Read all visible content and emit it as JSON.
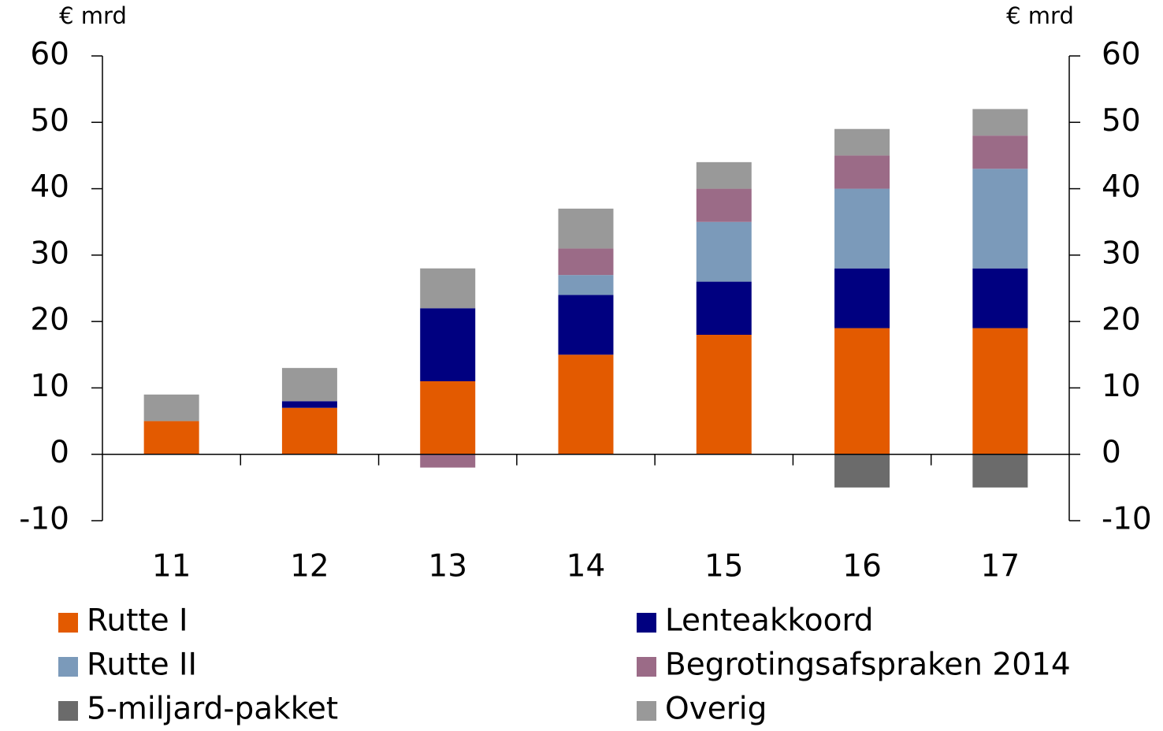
{
  "chart_data": {
    "type": "stacked_bar",
    "ylabel": "€ mrd",
    "y2label": "€ mrd",
    "categories": [
      "11",
      "12",
      "13",
      "14",
      "15",
      "16",
      "17"
    ],
    "series": [
      {
        "name": "Rutte I",
        "color": "#e35a00",
        "values": [
          5,
          7,
          11,
          15,
          18,
          19,
          19
        ]
      },
      {
        "name": "Lenteakkoord",
        "color": "#000080",
        "values": [
          0,
          1,
          11,
          9,
          8,
          9,
          9
        ]
      },
      {
        "name": "Rutte II",
        "color": "#7b9aba",
        "values": [
          0,
          0,
          0,
          3,
          9,
          12,
          15
        ]
      },
      {
        "name": "Begrotingsafspraken 2014",
        "color": "#9b6b87",
        "values": [
          0,
          0,
          -2,
          4,
          5,
          5,
          5
        ]
      },
      {
        "name": "5-miljard-pakket",
        "color": "#6b6b6b",
        "values": [
          0,
          0,
          0,
          0,
          0,
          -5,
          -5
        ]
      },
      {
        "name": "Overig",
        "color": "#999999",
        "values": [
          4,
          5,
          6,
          6,
          4,
          4,
          4
        ]
      }
    ],
    "ylim": [
      -10,
      60
    ],
    "yticks": [
      -10,
      0,
      10,
      20,
      30,
      40,
      50,
      60
    ],
    "y2lim": [
      -10,
      60
    ],
    "y2ticks": [
      -10,
      0,
      10,
      20,
      30,
      40,
      50,
      60
    ]
  }
}
